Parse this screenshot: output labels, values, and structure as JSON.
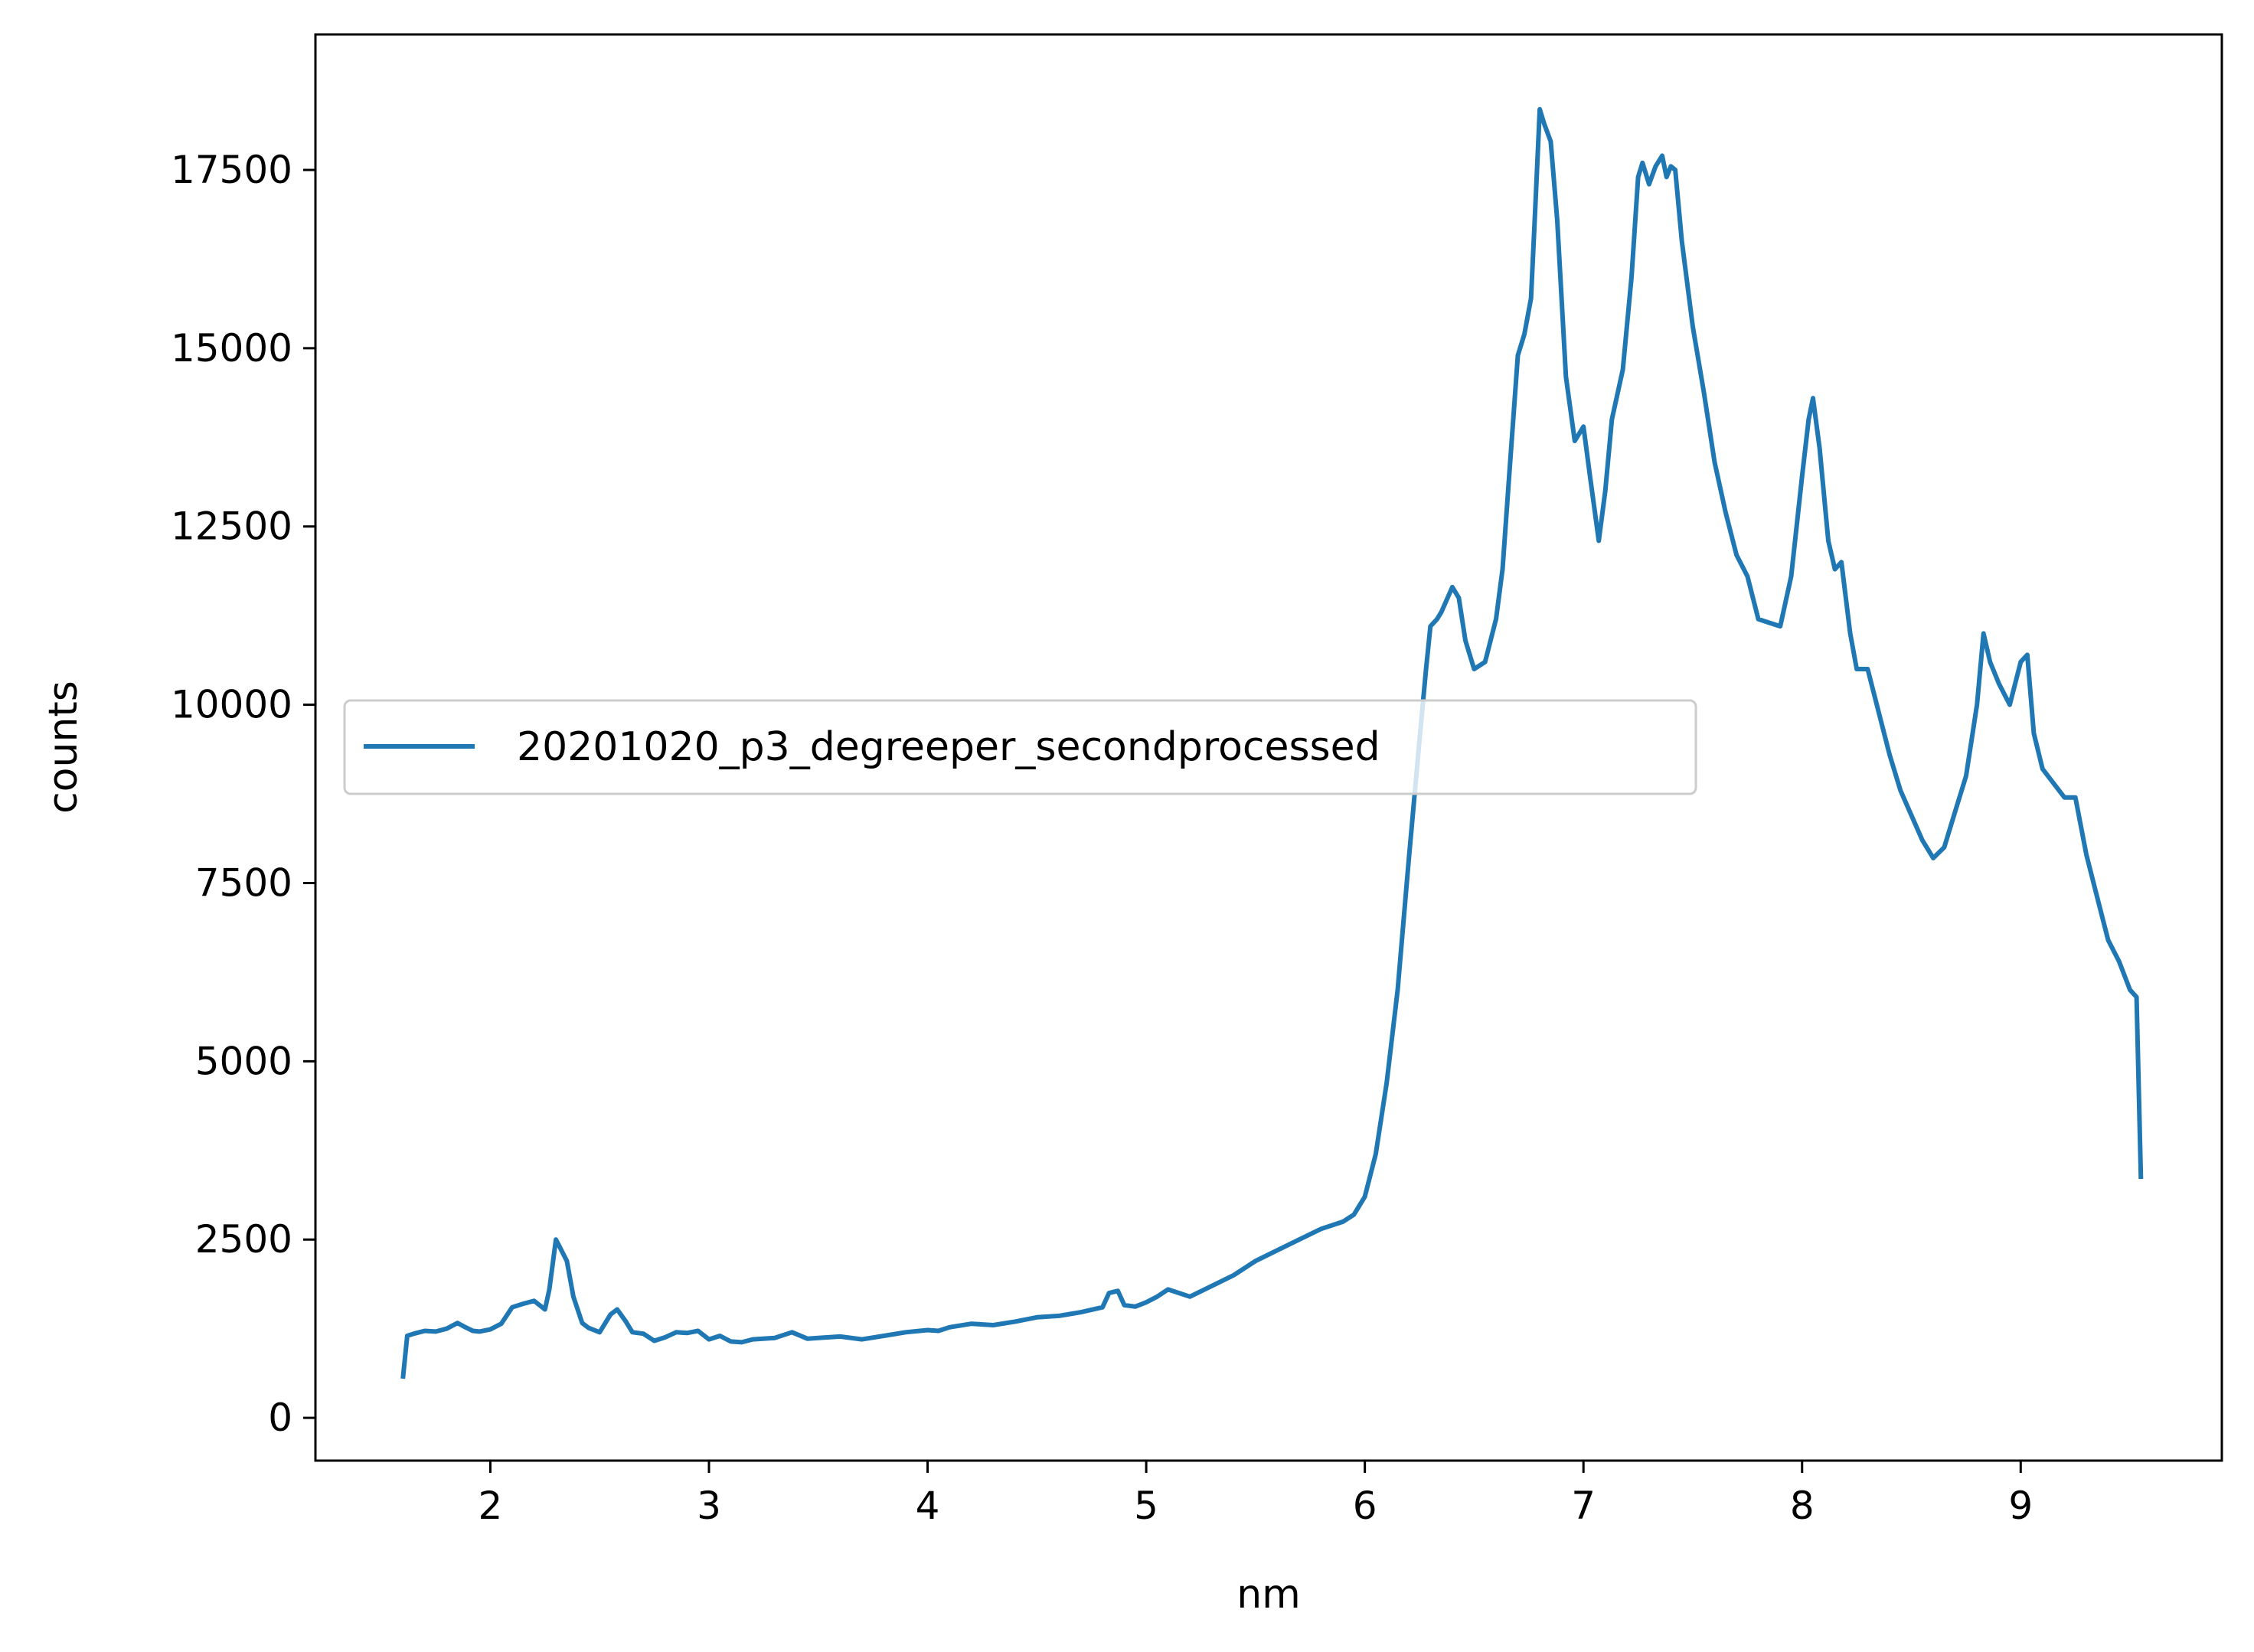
{
  "chart_data": {
    "type": "line",
    "title": "",
    "xlabel": "nm",
    "ylabel": "counts",
    "xlim": [
      1.2,
      9.92
    ],
    "ylim": [
      -600,
      19400
    ],
    "xticks": [
      2,
      3,
      4,
      5,
      6,
      7,
      8,
      9
    ],
    "yticks": [
      0,
      2500,
      5000,
      7500,
      10000,
      12500,
      15000,
      17500
    ],
    "grid": false,
    "legend_position": "center-left",
    "colors": {
      "series": "#1f77b4",
      "axes": "#000000",
      "legend_border": "#cccccc"
    },
    "series": [
      {
        "name": "20201020_p3_degreeper_secondprocessed",
        "x": [
          1.6,
          1.62,
          1.65,
          1.7,
          1.75,
          1.8,
          1.85,
          1.88,
          1.92,
          1.95,
          2.0,
          2.05,
          2.1,
          2.15,
          2.2,
          2.25,
          2.27,
          2.3,
          2.32,
          2.35,
          2.38,
          2.42,
          2.45,
          2.5,
          2.55,
          2.58,
          2.62,
          2.65,
          2.7,
          2.75,
          2.8,
          2.85,
          2.9,
          2.95,
          3.0,
          3.05,
          3.1,
          3.15,
          3.2,
          3.3,
          3.38,
          3.45,
          3.5,
          3.6,
          3.7,
          3.8,
          3.9,
          4.0,
          4.05,
          4.1,
          4.2,
          4.3,
          4.4,
          4.5,
          4.6,
          4.7,
          4.8,
          4.83,
          4.87,
          4.9,
          4.95,
          5.0,
          5.05,
          5.1,
          5.2,
          5.3,
          5.4,
          5.5,
          5.6,
          5.7,
          5.8,
          5.9,
          5.95,
          6.0,
          6.05,
          6.1,
          6.15,
          6.2,
          6.25,
          6.28,
          6.3,
          6.33,
          6.35,
          6.4,
          6.43,
          6.46,
          6.5,
          6.55,
          6.6,
          6.63,
          6.66,
          6.7,
          6.73,
          6.76,
          6.78,
          6.8,
          6.82,
          6.85,
          6.88,
          6.92,
          6.96,
          7.0,
          7.03,
          7.07,
          7.1,
          7.13,
          7.18,
          7.22,
          7.25,
          7.27,
          7.3,
          7.33,
          7.36,
          7.38,
          7.4,
          7.42,
          7.45,
          7.5,
          7.55,
          7.6,
          7.65,
          7.7,
          7.75,
          7.8,
          7.85,
          7.9,
          7.95,
          8.0,
          8.03,
          8.05,
          8.08,
          8.12,
          8.15,
          8.18,
          8.22,
          8.25,
          8.3,
          8.35,
          8.4,
          8.45,
          8.5,
          8.55,
          8.6,
          8.65,
          8.7,
          8.75,
          8.8,
          8.83,
          8.86,
          8.9,
          8.95,
          9.0,
          9.03,
          9.06,
          9.1,
          9.15,
          9.2,
          9.25,
          9.3,
          9.35,
          9.4,
          9.45,
          9.5,
          9.53,
          9.55
        ],
        "y": [
          550,
          1150,
          1180,
          1220,
          1210,
          1250,
          1330,
          1280,
          1220,
          1210,
          1240,
          1320,
          1550,
          1600,
          1640,
          1520,
          1800,
          2500,
          2380,
          2200,
          1700,
          1330,
          1260,
          1200,
          1450,
          1520,
          1350,
          1200,
          1180,
          1080,
          1130,
          1200,
          1190,
          1220,
          1100,
          1150,
          1070,
          1060,
          1100,
          1120,
          1200,
          1110,
          1120,
          1140,
          1100,
          1150,
          1200,
          1230,
          1220,
          1270,
          1320,
          1300,
          1350,
          1410,
          1430,
          1480,
          1550,
          1750,
          1780,
          1580,
          1560,
          1620,
          1700,
          1800,
          1700,
          1850,
          2000,
          2200,
          2350,
          2500,
          2650,
          2750,
          2850,
          3100,
          3700,
          4700,
          6000,
          7800,
          9500,
          10500,
          11100,
          11200,
          11300,
          11650,
          11500,
          10900,
          10500,
          10600,
          11200,
          11900,
          13200,
          14900,
          15200,
          15700,
          17000,
          18350,
          18150,
          17900,
          16800,
          14600,
          13700,
          13900,
          13200,
          12300,
          13000,
          14000,
          14700,
          16000,
          17400,
          17600,
          17300,
          17550,
          17700,
          17400,
          17550,
          17500,
          16500,
          15300,
          14400,
          13400,
          12700,
          12100,
          11800,
          11200,
          11150,
          11100,
          11800,
          13200,
          14000,
          14300,
          13600,
          12300,
          11900,
          12000,
          11000,
          10500,
          10500,
          9900,
          9300,
          8800,
          8450,
          8100,
          7850,
          8000,
          8500,
          9000,
          10000,
          11000,
          10600,
          10300,
          10000,
          10600,
          10700,
          9600,
          9100,
          8900,
          8700,
          8700,
          7900,
          7300,
          6700,
          6400,
          6000,
          5900,
          3350
        ]
      }
    ]
  }
}
